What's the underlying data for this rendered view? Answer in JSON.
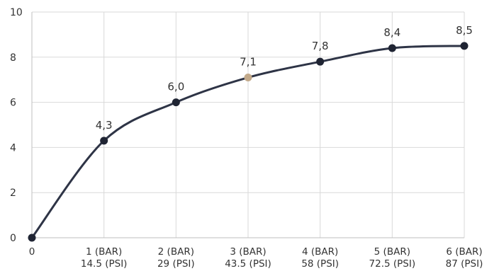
{
  "chart_data": {
    "type": "line",
    "x": [
      0,
      1,
      2,
      3,
      4,
      5,
      6
    ],
    "categories": [
      "0",
      [
        "1 (BAR)",
        "14.5 (PSI)"
      ],
      [
        "2 (BAR)",
        "29 (PSI)"
      ],
      [
        "3 (BAR)",
        "43.5 (PSI)"
      ],
      [
        "4 (BAR)",
        "58 (PSI)"
      ],
      [
        "5 (BAR)",
        "72.5 (PSI)"
      ],
      [
        "6 (BAR)",
        "87 (PSI)"
      ]
    ],
    "series": [
      {
        "values": [
          0,
          4.3,
          6.0,
          7.1,
          7.8,
          8.4,
          8.5
        ],
        "data_labels": [
          "",
          "4,3",
          "6,0",
          "7,1",
          "7,8",
          "8,4",
          "8,5"
        ],
        "color": "#2e3446",
        "point_colors": [
          "#1f2433",
          "#1f2433",
          "#1f2433",
          "#c2a98a",
          "#1f2433",
          "#1f2433",
          "#1f2433"
        ]
      }
    ],
    "y_ticks": [
      "0",
      "2",
      "4",
      "6",
      "8",
      "10"
    ],
    "ylim": [
      0,
      10
    ],
    "xlim": [
      0,
      6
    ],
    "grid": true,
    "title": "",
    "xlabel": "",
    "ylabel": ""
  }
}
